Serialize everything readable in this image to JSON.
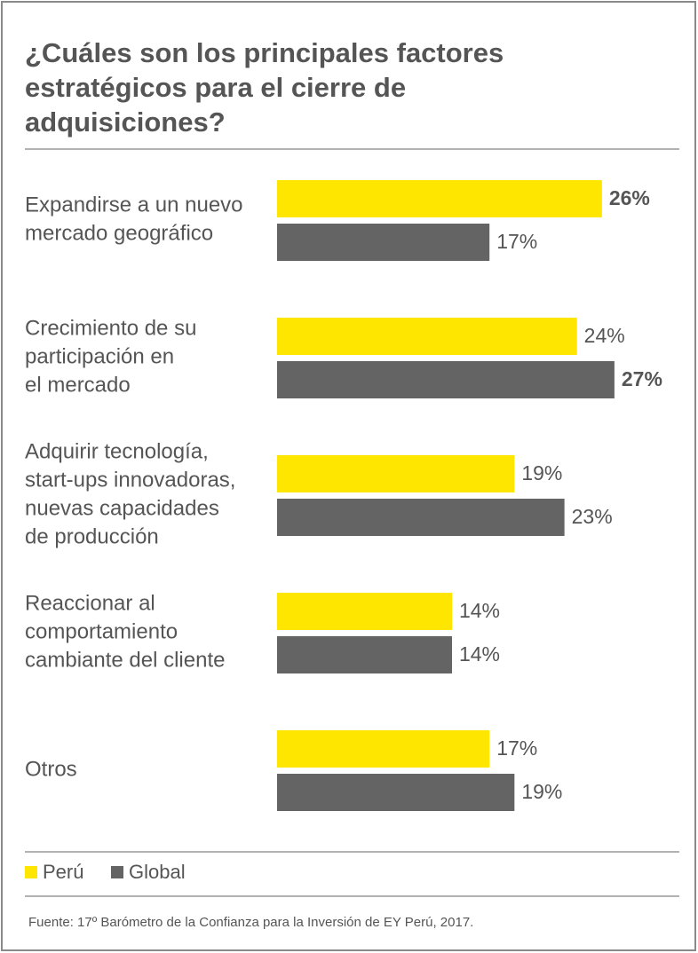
{
  "chart_data": {
    "type": "bar",
    "orientation": "horizontal",
    "title": [
      "¿Cuáles son los principales factores",
      "estratégicos para el cierre de",
      "adquisiciones?"
    ],
    "categories": [
      [
        "Expandirse a un nuevo",
        "mercado geográfico"
      ],
      [
        "Crecimiento de su",
        "participación en",
        "el mercado"
      ],
      [
        "Adquirir tecnología,",
        "start-ups innovadoras,",
        "nuevas capacidades",
        "de producción"
      ],
      [
        "Reaccionar al",
        "comportamiento",
        "cambiante del cliente"
      ],
      [
        "Otros"
      ]
    ],
    "series": [
      {
        "name": "Perú",
        "color": "#ffe600",
        "values": [
          26,
          24,
          19,
          14,
          17
        ],
        "value_labels": [
          "26%",
          "24%",
          "19%",
          "14%",
          "17%"
        ]
      },
      {
        "name": "Global",
        "color": "#646464",
        "values": [
          17,
          27,
          23,
          14,
          19
        ],
        "value_labels": [
          "17%",
          "27%",
          "23%",
          "14%",
          "19%"
        ]
      }
    ],
    "source": "Fuente: 17º Barómetro de la Confianza para la Inversión de EY Perú, 2017."
  }
}
